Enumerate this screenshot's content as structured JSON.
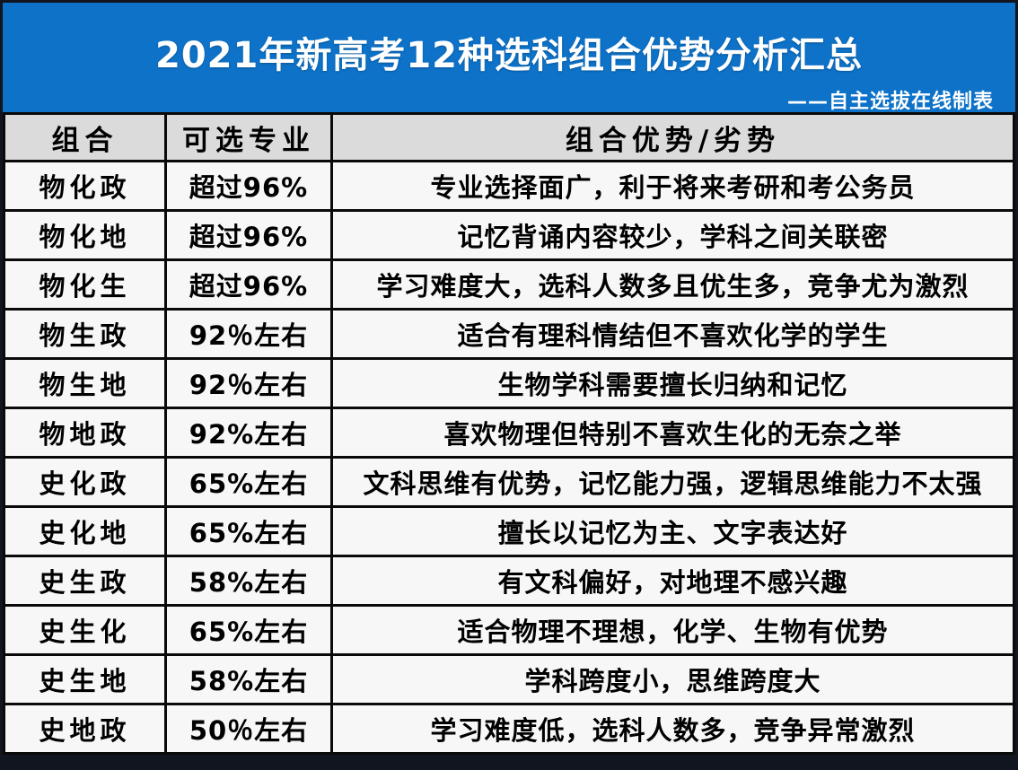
{
  "header": {
    "title": "2021年新高考12种选科组合优势分析汇总",
    "subtitle": "——自主选拔在线制表",
    "bg_color": "#0d72c8",
    "text_color": "#ffffff"
  },
  "table": {
    "columns": [
      "组合",
      "可选专业",
      "组合优势/劣势"
    ],
    "header_bg": "#dbdbdb",
    "row_bg": "#f7f7f7",
    "border_color": "#0a0a0a",
    "rows": [
      {
        "combo": "物化政",
        "majors": "超过96%",
        "note": "专业选择面广，利于将来考研和考公务员"
      },
      {
        "combo": "物化地",
        "majors": "超过96%",
        "note": "记忆背诵内容较少，学科之间关联密"
      },
      {
        "combo": "物化生",
        "majors": "超过96%",
        "note": "学习难度大，选科人数多且优生多，竞争尤为激烈"
      },
      {
        "combo": "物生政",
        "majors": "92％左右",
        "note": "适合有理科情结但不喜欢化学的学生"
      },
      {
        "combo": "物生地",
        "majors": "92％左右",
        "note": "生物学科需要擅长归纳和记忆"
      },
      {
        "combo": "物地政",
        "majors": "92%左右",
        "note": "喜欢物理但特别不喜欢生化的无奈之举"
      },
      {
        "combo": "史化政",
        "majors": "65%左右",
        "note": "文科思维有优势，记忆能力强，逻辑思维能力不太强"
      },
      {
        "combo": "史化地",
        "majors": "65%左右",
        "note": "擅长以记忆为主、文字表达好"
      },
      {
        "combo": "史生政",
        "majors": "58%左右",
        "note": "有文科偏好，对地理不感兴趣"
      },
      {
        "combo": "史生化",
        "majors": "65%左右",
        "note": "适合物理不理想，化学、生物有优势"
      },
      {
        "combo": "史生地",
        "majors": "58%左右",
        "note": "学科跨度小，思维跨度大"
      },
      {
        "combo": "史地政",
        "majors": "50％左右",
        "note": "学习难度低，选科人数多，竞争异常激烈"
      }
    ]
  }
}
